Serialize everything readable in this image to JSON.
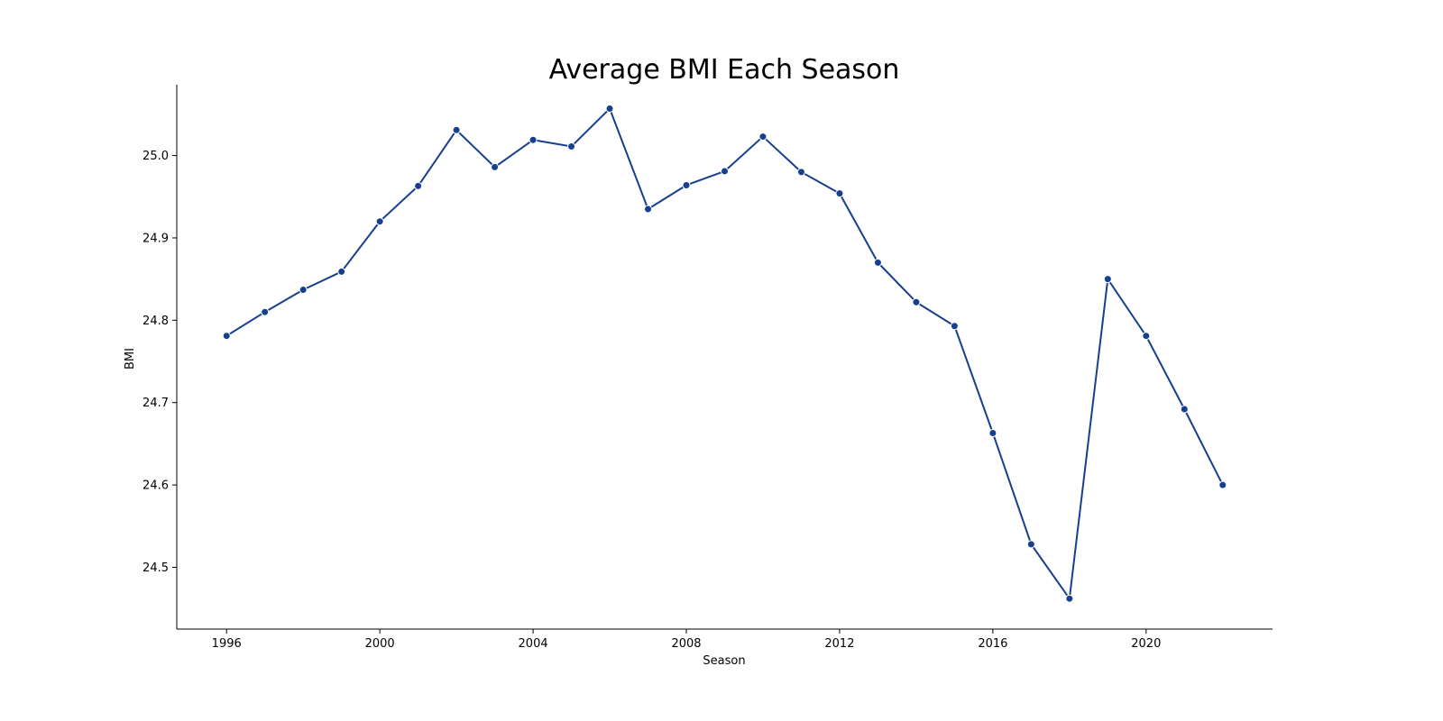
{
  "chart_data": {
    "type": "line",
    "title": "Average BMI Each Season",
    "xlabel": "Season",
    "ylabel": "BMI",
    "xlim": [
      1994.7,
      2023.3
    ],
    "ylim": [
      24.425,
      25.086
    ],
    "xticks": [
      1996,
      2000,
      2004,
      2008,
      2012,
      2016,
      2020
    ],
    "yticks": [
      24.5,
      24.6,
      24.7,
      24.8,
      24.9,
      25.0
    ],
    "ytick_labels": [
      "24.5",
      "24.6",
      "24.7",
      "24.8",
      "24.9",
      "25.0"
    ],
    "grid": false,
    "series": [
      {
        "color": "#173f8f",
        "marker": "circle",
        "x": [
          1996,
          1997,
          1998,
          1999,
          2000,
          2001,
          2002,
          2003,
          2004,
          2005,
          2006,
          2007,
          2008,
          2009,
          2010,
          2011,
          2012,
          2013,
          2014,
          2015,
          2016,
          2017,
          2018,
          2019,
          2020,
          2021,
          2022
        ],
        "values": [
          24.781,
          24.81,
          24.837,
          24.859,
          24.92,
          24.963,
          25.031,
          24.986,
          25.019,
          25.011,
          25.057,
          24.935,
          24.964,
          24.981,
          25.023,
          24.98,
          24.954,
          24.87,
          24.822,
          24.793,
          24.663,
          24.528,
          24.462,
          24.85,
          24.781,
          24.692,
          24.6
        ]
      }
    ]
  }
}
